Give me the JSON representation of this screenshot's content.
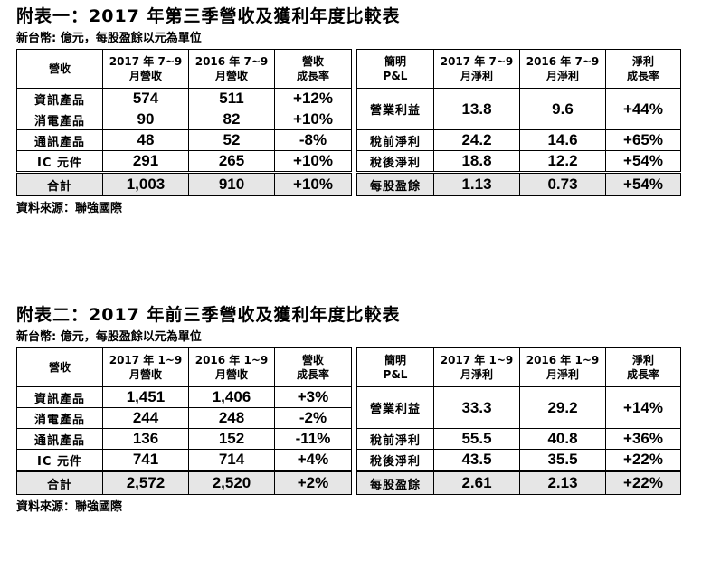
{
  "tables": [
    {
      "title": "附表一：2017 年第三季營收及獲利年度比較表",
      "unit": "新台幣: 億元，每股盈餘以元為單位",
      "source": "資料來源：聯強國際",
      "rev_headers": [
        [
          "營收",
          ""
        ],
        [
          "2017 年 7~9",
          "月營收"
        ],
        [
          "2016 年 7~9",
          "月營收"
        ],
        [
          "營收",
          "成長率"
        ]
      ],
      "pl_headers": [
        [
          "簡明",
          "P&L"
        ],
        [
          "2017 年 7~9",
          "月淨利"
        ],
        [
          "2016 年 7~9",
          "月淨利"
        ],
        [
          "淨利",
          "成長率"
        ]
      ],
      "rev_rows": [
        [
          "資訊產品",
          "574",
          "511",
          "+12%"
        ],
        [
          "消電產品",
          "90",
          "82",
          "+10%"
        ],
        [
          "通訊產品",
          "48",
          "52",
          "-8%"
        ],
        [
          "IC 元件",
          "291",
          "265",
          "+10%"
        ]
      ],
      "rev_total": [
        "合計",
        "1,003",
        "910",
        "+10%"
      ],
      "pl_rows": [
        [
          "營業利益",
          "13.8",
          "9.6",
          "+44%"
        ],
        [
          "稅前淨利",
          "24.2",
          "14.6",
          "+65%"
        ],
        [
          "稅後淨利",
          "18.8",
          "12.2",
          "+54%"
        ]
      ],
      "pl_total": [
        "每股盈餘",
        "1.13",
        "0.73",
        "+54%"
      ]
    },
    {
      "title": "附表二：2017 年前三季營收及獲利年度比較表",
      "unit": "新台幣: 億元，每股盈餘以元為單位",
      "source": "資料來源：聯強國際",
      "rev_headers": [
        [
          "營收",
          ""
        ],
        [
          "2017 年 1~9",
          "月營收"
        ],
        [
          "2016 年 1~9",
          "月營收"
        ],
        [
          "營收",
          "成長率"
        ]
      ],
      "pl_headers": [
        [
          "簡明",
          "P&L"
        ],
        [
          "2017 年 1~9",
          "月淨利"
        ],
        [
          "2016 年 1~9",
          "月淨利"
        ],
        [
          "淨利",
          "成長率"
        ]
      ],
      "rev_rows": [
        [
          "資訊產品",
          "1,451",
          "1,406",
          "+3%"
        ],
        [
          "消電產品",
          "244",
          "248",
          "-2%"
        ],
        [
          "通訊產品",
          "136",
          "152",
          "-11%"
        ],
        [
          "IC 元件",
          "741",
          "714",
          "+4%"
        ]
      ],
      "rev_total": [
        "合計",
        "2,572",
        "2,520",
        "+2%"
      ],
      "pl_rows": [
        [
          "營業利益",
          "33.3",
          "29.2",
          "+14%"
        ],
        [
          "稅前淨利",
          "55.5",
          "40.8",
          "+36%"
        ],
        [
          "稅後淨利",
          "43.5",
          "35.5",
          "+22%"
        ]
      ],
      "pl_total": [
        "每股盈餘",
        "2.61",
        "2.13",
        "+22%"
      ]
    }
  ]
}
